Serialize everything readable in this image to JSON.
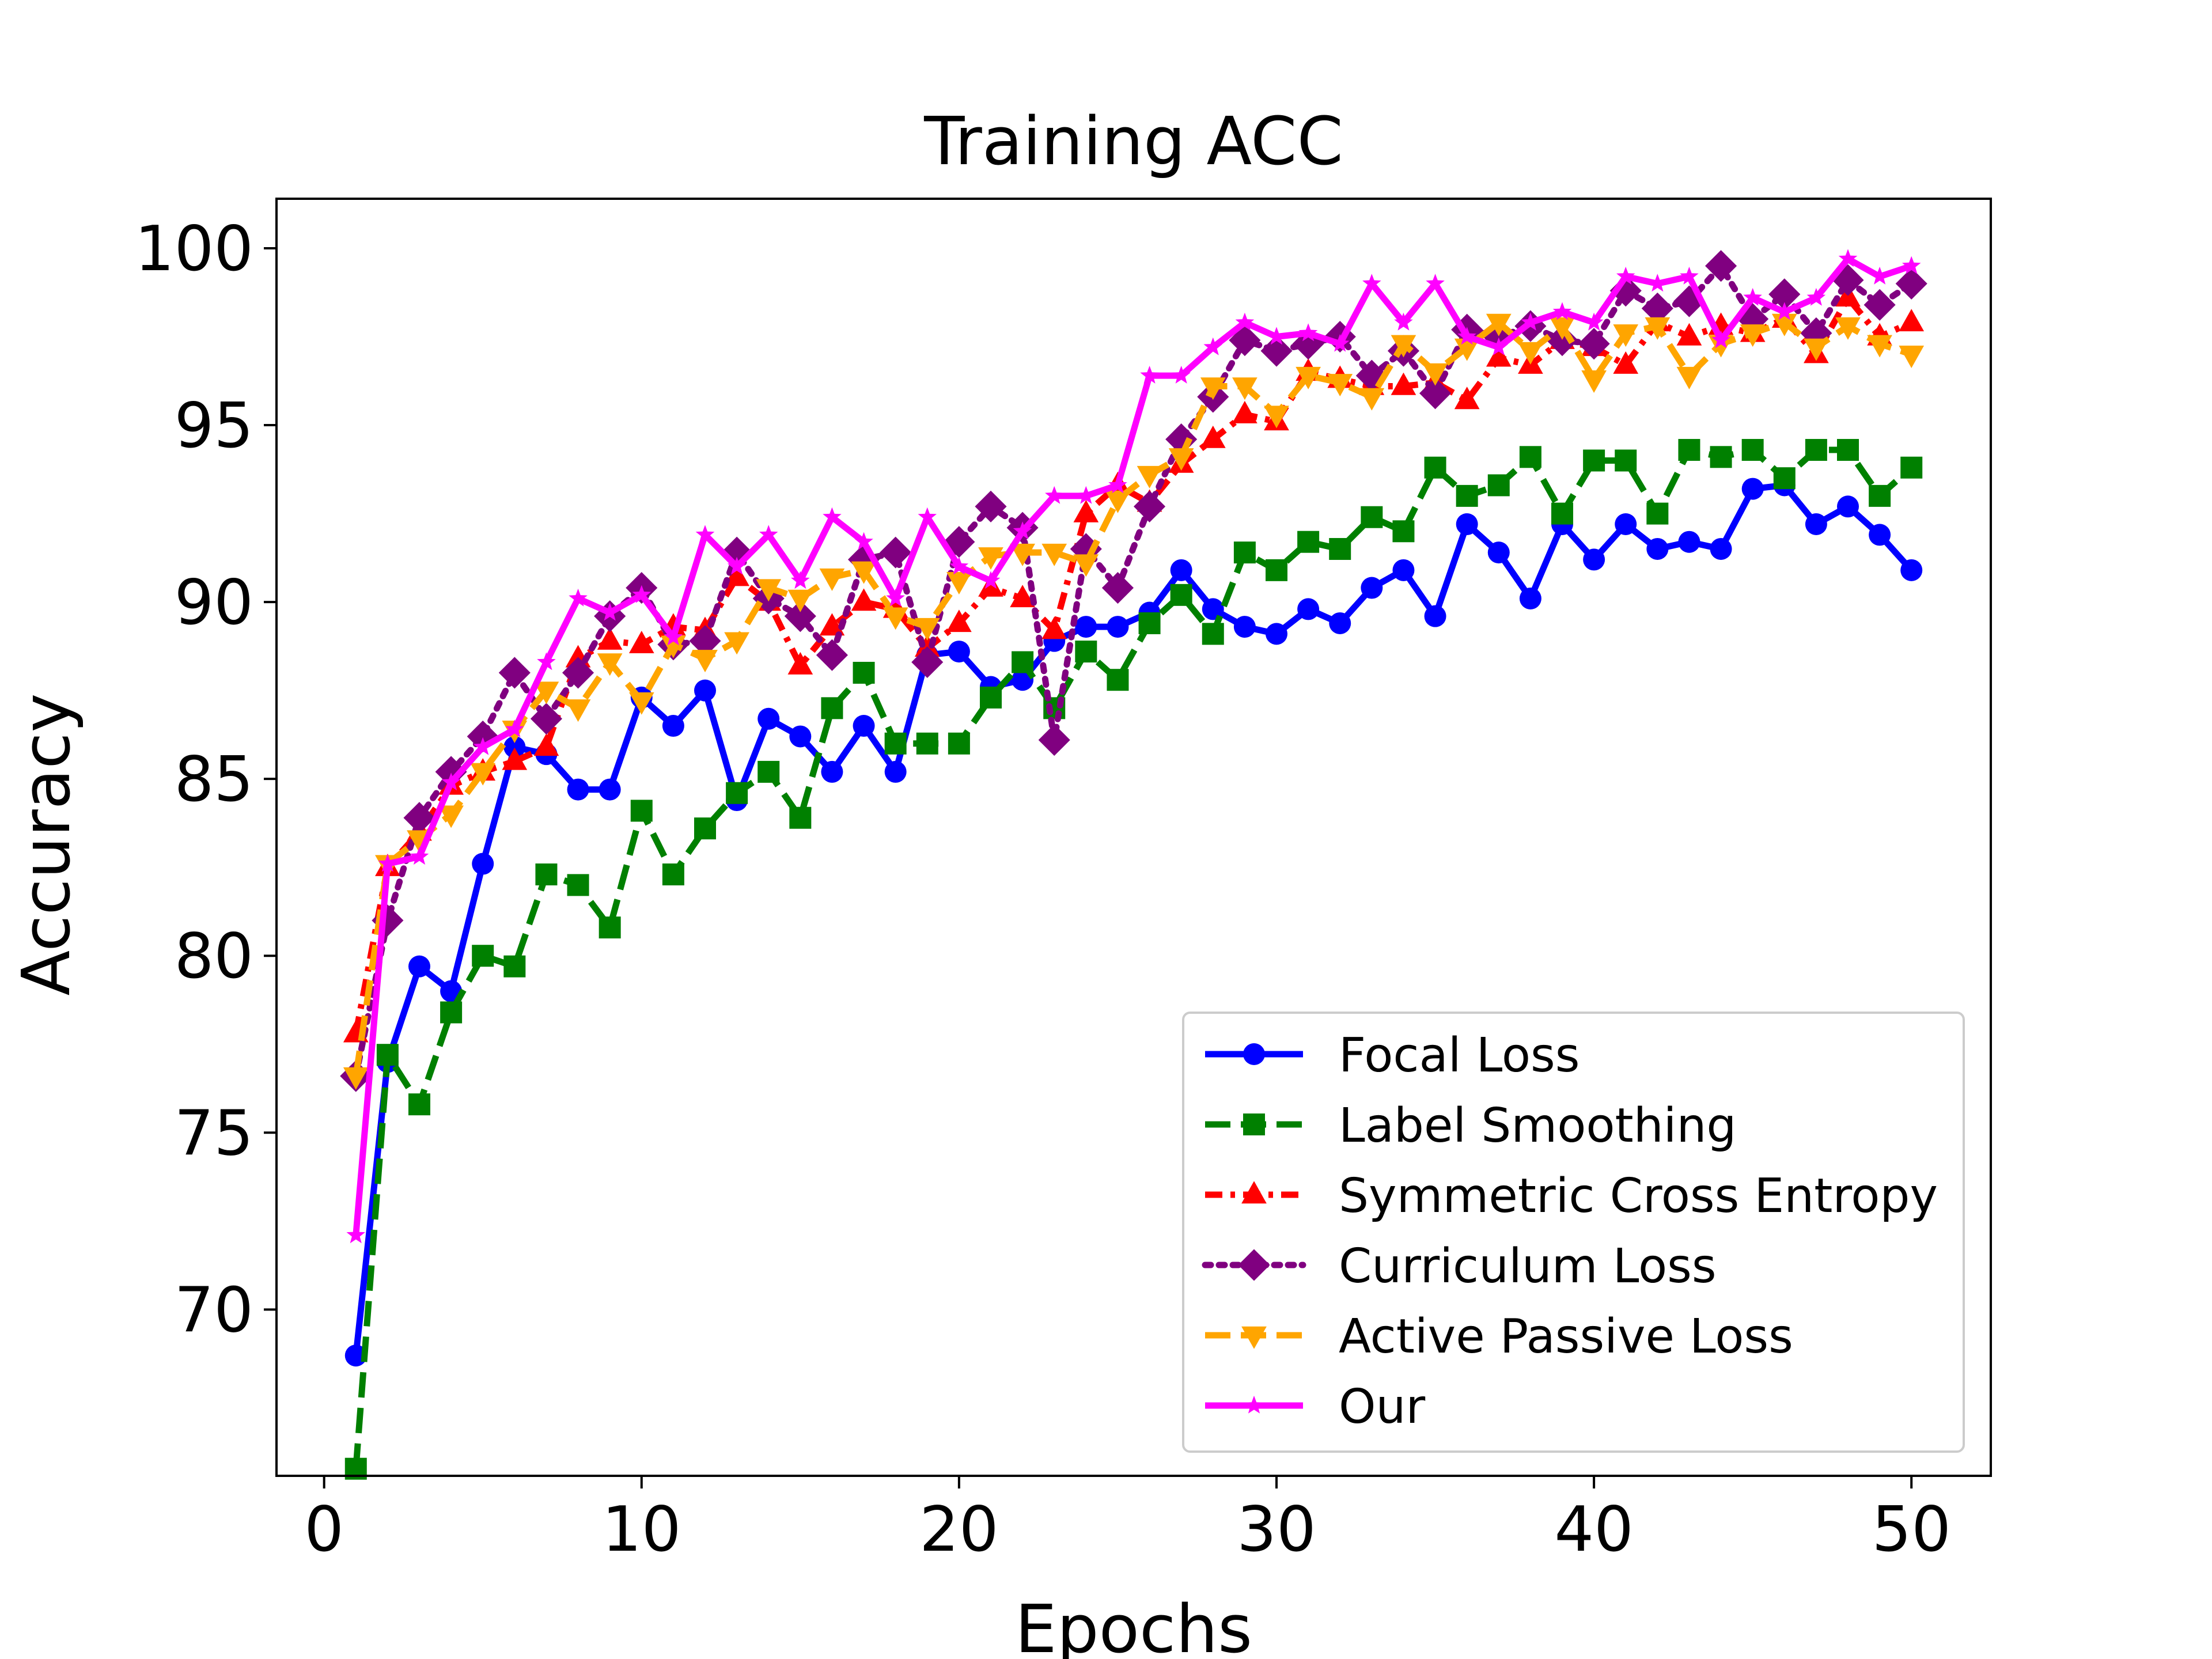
{
  "chart_data": {
    "type": "line",
    "title": "Training ACC",
    "xlabel": "Epochs",
    "ylabel": "Accuracy",
    "xlim": [
      -1.5,
      52.5
    ],
    "ylim": [
      65.3,
      101.4
    ],
    "xticks": [
      0,
      10,
      20,
      30,
      40,
      50
    ],
    "yticks": [
      70,
      75,
      80,
      85,
      90,
      95,
      100
    ],
    "grid": false,
    "legend_position": "lower-right",
    "series": [
      {
        "name": "Focal Loss",
        "color": "#0000ff",
        "linestyle": "solid",
        "marker": "circle",
        "x": [
          1,
          2,
          3,
          4,
          5,
          6,
          7,
          8,
          9,
          10,
          11,
          12,
          13,
          14,
          15,
          16,
          17,
          18,
          19,
          20,
          21,
          22,
          23,
          24,
          25,
          26,
          27,
          28,
          29,
          30,
          31,
          32,
          33,
          34,
          35,
          36,
          37,
          38,
          39,
          40,
          41,
          42,
          43,
          44,
          45,
          46,
          47,
          48,
          49,
          50
        ],
        "values": [
          68.7,
          77.0,
          79.7,
          79.0,
          82.6,
          85.9,
          85.7,
          84.7,
          84.7,
          87.3,
          86.5,
          87.5,
          84.4,
          86.7,
          86.2,
          85.2,
          86.5,
          85.2,
          88.5,
          88.6,
          87.6,
          87.8,
          88.9,
          89.3,
          89.3,
          89.7,
          90.9,
          89.8,
          89.3,
          89.1,
          89.8,
          89.4,
          90.4,
          90.9,
          89.6,
          92.2,
          91.4,
          90.1,
          92.2,
          91.2,
          92.2,
          91.5,
          91.7,
          91.5,
          93.2,
          93.3,
          92.2,
          92.7,
          91.9,
          90.9
        ]
      },
      {
        "name": "Label Smoothing",
        "color": "#008000",
        "linestyle": "dashed",
        "marker": "square",
        "x": [
          1,
          2,
          3,
          4,
          5,
          6,
          7,
          8,
          9,
          10,
          11,
          12,
          13,
          14,
          15,
          16,
          17,
          18,
          19,
          20,
          21,
          22,
          23,
          24,
          25,
          26,
          27,
          28,
          29,
          30,
          31,
          32,
          33,
          34,
          35,
          36,
          37,
          38,
          39,
          40,
          41,
          42,
          43,
          44,
          45,
          46,
          47,
          48,
          49,
          50
        ],
        "values": [
          65.5,
          77.2,
          75.8,
          78.4,
          80.0,
          79.7,
          82.3,
          82.0,
          80.8,
          84.1,
          82.3,
          83.6,
          84.6,
          85.2,
          83.9,
          87.0,
          88.0,
          86.0,
          86.0,
          86.0,
          87.3,
          88.3,
          87.0,
          88.6,
          87.8,
          89.4,
          90.2,
          89.1,
          91.4,
          90.9,
          91.7,
          91.5,
          92.4,
          92.0,
          93.8,
          93.0,
          93.3,
          94.1,
          92.5,
          94.0,
          94.0,
          92.5,
          94.3,
          94.1,
          94.3,
          93.5,
          94.3,
          94.3,
          93.0,
          93.8
        ]
      },
      {
        "name": "Symmetric Cross Entropy",
        "color": "#ff0000",
        "linestyle": "dash-dot",
        "marker": "triangle",
        "x": [
          1,
          2,
          3,
          4,
          5,
          6,
          7,
          8,
          9,
          10,
          11,
          12,
          13,
          14,
          15,
          16,
          17,
          18,
          19,
          20,
          21,
          22,
          23,
          24,
          25,
          26,
          27,
          28,
          29,
          30,
          31,
          32,
          33,
          34,
          35,
          36,
          37,
          38,
          39,
          40,
          41,
          42,
          43,
          44,
          45,
          46,
          47,
          48,
          49,
          50
        ],
        "values": [
          77.8,
          82.5,
          83.5,
          84.8,
          85.2,
          85.5,
          85.9,
          88.4,
          88.9,
          88.8,
          89.3,
          89.2,
          90.7,
          90.0,
          88.2,
          89.3,
          90.0,
          89.8,
          88.7,
          89.4,
          90.4,
          90.1,
          89.2,
          92.5,
          93.3,
          92.8,
          93.9,
          94.6,
          95.3,
          95.1,
          96.5,
          96.3,
          96.1,
          96.1,
          96.2,
          95.7,
          96.9,
          96.7,
          97.4,
          97.2,
          96.7,
          97.9,
          97.5,
          97.8,
          97.6,
          98.0,
          97.0,
          98.6,
          97.5,
          97.9
        ]
      },
      {
        "name": "Curriculum Loss",
        "color": "#800080",
        "linestyle": "dotted",
        "marker": "diamond",
        "x": [
          1,
          2,
          3,
          4,
          5,
          6,
          7,
          8,
          9,
          10,
          11,
          12,
          13,
          14,
          15,
          16,
          17,
          18,
          19,
          20,
          21,
          22,
          23,
          24,
          25,
          26,
          27,
          28,
          29,
          30,
          31,
          32,
          33,
          34,
          35,
          36,
          37,
          38,
          39,
          40,
          41,
          42,
          43,
          44,
          45,
          46,
          47,
          48,
          49,
          50
        ],
        "values": [
          76.6,
          81.0,
          83.9,
          85.2,
          86.2,
          88.0,
          86.7,
          88.0,
          89.6,
          90.4,
          88.8,
          88.9,
          91.4,
          90.1,
          89.6,
          88.5,
          91.2,
          91.4,
          88.3,
          91.7,
          92.7,
          92.1,
          86.1,
          91.5,
          90.4,
          92.7,
          94.6,
          95.8,
          97.4,
          97.1,
          97.3,
          97.5,
          96.4,
          97.1,
          95.9,
          97.7,
          97.5,
          97.8,
          97.4,
          97.3,
          98.8,
          98.3,
          98.5,
          99.5,
          98.0,
          98.7,
          97.6,
          99.1,
          98.4,
          99.0
        ]
      },
      {
        "name": "Active Passive Loss",
        "color": "#ffa500",
        "linestyle": "dashed",
        "marker": "triangle-down",
        "x": [
          1,
          2,
          3,
          4,
          5,
          6,
          7,
          8,
          9,
          10,
          11,
          12,
          13,
          14,
          15,
          16,
          17,
          18,
          19,
          20,
          21,
          22,
          23,
          24,
          25,
          26,
          27,
          28,
          29,
          30,
          31,
          32,
          33,
          34,
          35,
          36,
          37,
          38,
          39,
          40,
          41,
          42,
          43,
          44,
          45,
          46,
          47,
          48,
          49,
          50
        ],
        "values": [
          76.6,
          82.6,
          83.3,
          84.0,
          85.2,
          86.4,
          87.5,
          87.0,
          88.3,
          87.2,
          88.8,
          88.4,
          88.9,
          90.4,
          90.1,
          90.7,
          90.9,
          89.6,
          89.3,
          90.6,
          91.3,
          91.4,
          91.4,
          91.1,
          92.9,
          93.6,
          94.1,
          96.1,
          96.1,
          95.3,
          96.4,
          96.2,
          95.8,
          97.3,
          96.5,
          97.2,
          97.9,
          97.1,
          97.8,
          96.3,
          97.6,
          97.8,
          96.4,
          97.3,
          97.6,
          97.9,
          97.2,
          97.8,
          97.3,
          97.0
        ]
      },
      {
        "name": "Our",
        "color": "#ff00ff",
        "linestyle": "solid",
        "marker": "star",
        "x": [
          1,
          2,
          3,
          4,
          5,
          6,
          7,
          8,
          9,
          10,
          11,
          12,
          13,
          14,
          15,
          16,
          17,
          18,
          19,
          20,
          21,
          22,
          23,
          24,
          25,
          26,
          27,
          28,
          29,
          30,
          31,
          32,
          33,
          34,
          35,
          36,
          37,
          38,
          39,
          40,
          41,
          42,
          43,
          44,
          45,
          46,
          47,
          48,
          49,
          50
        ],
        "values": [
          72.1,
          82.6,
          82.8,
          84.9,
          85.9,
          86.4,
          88.3,
          90.1,
          89.7,
          90.2,
          89.0,
          91.9,
          91.0,
          91.9,
          90.6,
          92.4,
          91.7,
          90.1,
          92.4,
          91.0,
          90.6,
          92.0,
          93.0,
          93.0,
          93.3,
          96.4,
          96.4,
          97.2,
          97.9,
          97.5,
          97.6,
          97.3,
          99.0,
          97.9,
          99.0,
          97.5,
          97.2,
          97.9,
          98.2,
          97.9,
          99.2,
          99.0,
          99.2,
          97.4,
          98.6,
          98.2,
          98.6,
          99.7,
          99.2,
          99.5
        ]
      }
    ]
  }
}
